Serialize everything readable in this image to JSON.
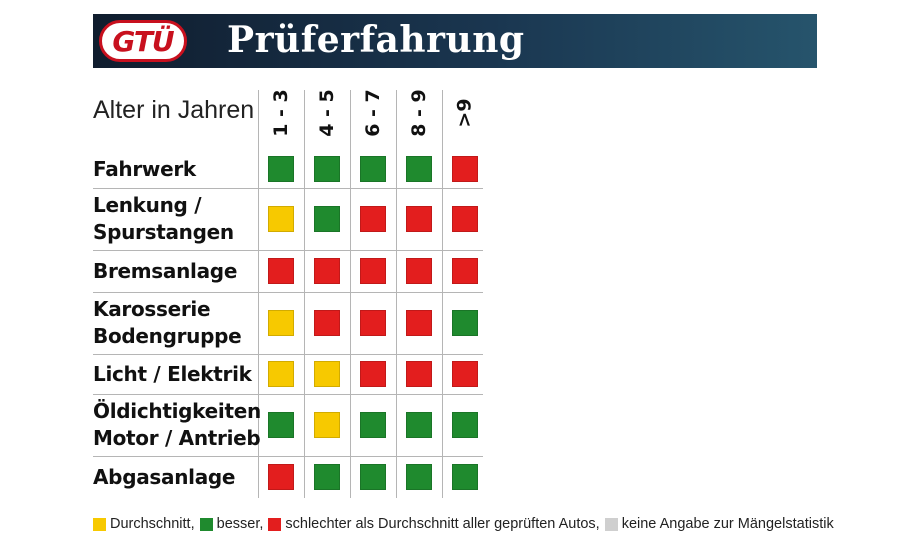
{
  "header": {
    "logo_text": "GTÜ",
    "title": "Prüferfahrung"
  },
  "table": {
    "age_label": "Alter in Jahren",
    "columns": [
      "1 - 3",
      "4 - 5",
      "6 - 7",
      "8 - 9",
      ">9"
    ],
    "rows": [
      {
        "label_lines": [
          "Fahrwerk"
        ],
        "ratings": [
          "green",
          "green",
          "green",
          "green",
          "red"
        ]
      },
      {
        "label_lines": [
          "Lenkung /",
          "Spurstangen"
        ],
        "ratings": [
          "yellow",
          "green",
          "red",
          "red",
          "red"
        ]
      },
      {
        "label_lines": [
          "Bremsanlage"
        ],
        "ratings": [
          "red",
          "red",
          "red",
          "red",
          "red"
        ]
      },
      {
        "label_lines": [
          "Karosserie",
          "Bodengruppe"
        ],
        "ratings": [
          "yellow",
          "red",
          "red",
          "red",
          "green"
        ]
      },
      {
        "label_lines": [
          "Licht / Elektrik"
        ],
        "ratings": [
          "yellow",
          "yellow",
          "red",
          "red",
          "red"
        ]
      },
      {
        "label_lines": [
          "Öldichtigkeiten",
          "Motor / Antrieb"
        ],
        "ratings": [
          "green",
          "yellow",
          "green",
          "green",
          "green"
        ]
      },
      {
        "label_lines": [
          "Abgasanlage"
        ],
        "ratings": [
          "red",
          "green",
          "green",
          "green",
          "green"
        ]
      }
    ]
  },
  "colors": {
    "yellow": "#f7c900",
    "green": "#1f8a2e",
    "red": "#e31e1e",
    "grey": "#cfcfcf"
  },
  "legend": [
    {
      "color": "yellow",
      "text": "Durchschnitt,"
    },
    {
      "color": "green",
      "text": "besser,"
    },
    {
      "color": "red",
      "text": "schlechter als Durchschnitt aller geprüften Autos,"
    },
    {
      "color": "grey",
      "text": "keine Angabe zur Mängelstatistik"
    }
  ]
}
